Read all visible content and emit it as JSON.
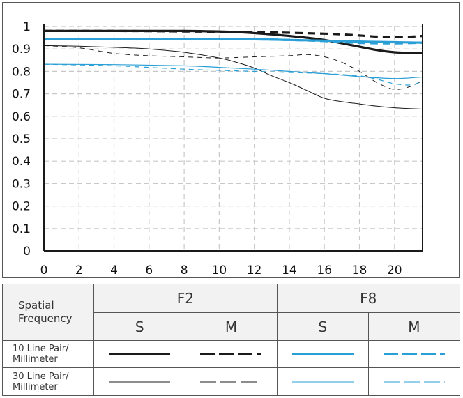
{
  "chart_data": {
    "type": "line",
    "title": "",
    "xlabel": "",
    "ylabel": "",
    "xlim": [
      0,
      21.6
    ],
    "ylim": [
      0,
      1
    ],
    "xticks": [
      0,
      2,
      4,
      6,
      8,
      10,
      12,
      14,
      16,
      18,
      20
    ],
    "yticks": [
      0,
      0.1,
      0.2,
      0.3,
      0.4,
      0.5,
      0.6,
      0.7,
      0.8,
      0.9,
      1
    ],
    "ytick_labels": [
      "0",
      "0.1",
      "0.2",
      "0.3",
      "0.4",
      "0.5",
      "0.6",
      "0.7",
      "0.8",
      "0.9",
      "1"
    ],
    "grid": true,
    "series": [
      {
        "name": "F2 S 10",
        "color": "#1a1a1a",
        "width": 3.2,
        "dash": "",
        "x": [
          0,
          4,
          8,
          11,
          13,
          15,
          16,
          17,
          18,
          19,
          20,
          21,
          21.6
        ],
        "y": [
          0.98,
          0.98,
          0.98,
          0.975,
          0.965,
          0.95,
          0.94,
          0.925,
          0.91,
          0.895,
          0.885,
          0.882,
          0.882
        ]
      },
      {
        "name": "F2 M 10",
        "color": "#1a1a1a",
        "width": 3.2,
        "dash": "11,7",
        "x": [
          0,
          4,
          8,
          12,
          14,
          16,
          17,
          18,
          19,
          20,
          21,
          21.6
        ],
        "y": [
          0.98,
          0.98,
          0.978,
          0.975,
          0.972,
          0.968,
          0.965,
          0.96,
          0.955,
          0.953,
          0.955,
          0.958
        ]
      },
      {
        "name": "F8 S 10",
        "color": "#2a9fd6",
        "width": 3.2,
        "dash": "",
        "x": [
          0,
          4,
          8,
          12,
          14,
          16,
          18,
          20,
          21.6
        ],
        "y": [
          0.945,
          0.945,
          0.945,
          0.943,
          0.94,
          0.937,
          0.933,
          0.93,
          0.928
        ]
      },
      {
        "name": "F8 M 10",
        "color": "#2a9fd6",
        "width": 3.2,
        "dash": "11,7",
        "x": [
          0,
          4,
          8,
          12,
          14,
          16,
          18,
          20,
          21.6
        ],
        "y": [
          0.945,
          0.945,
          0.945,
          0.943,
          0.94,
          0.935,
          0.927,
          0.925,
          0.928
        ]
      },
      {
        "name": "F2 S 30",
        "color": "#1a1a1a",
        "width": 1,
        "dash": "",
        "x": [
          0,
          2,
          4,
          6,
          8,
          10,
          11,
          12,
          13,
          14,
          15,
          16,
          17,
          18,
          19,
          20,
          21,
          21.6
        ],
        "y": [
          0.915,
          0.912,
          0.907,
          0.9,
          0.885,
          0.86,
          0.84,
          0.815,
          0.78,
          0.75,
          0.715,
          0.68,
          0.665,
          0.655,
          0.645,
          0.638,
          0.634,
          0.632
        ]
      },
      {
        "name": "F2 M 30",
        "color": "#1a1a1a",
        "width": 1,
        "dash": "7,6",
        "x": [
          0,
          2,
          4,
          6,
          8,
          10,
          12,
          14,
          15,
          16,
          17,
          18,
          19,
          20,
          21,
          21.6
        ],
        "y": [
          0.915,
          0.905,
          0.88,
          0.87,
          0.865,
          0.86,
          0.865,
          0.87,
          0.875,
          0.865,
          0.84,
          0.8,
          0.75,
          0.72,
          0.735,
          0.76
        ]
      },
      {
        "name": "F8 S 30",
        "color": "#2a9fd6",
        "width": 1.2,
        "dash": "",
        "x": [
          0,
          4,
          8,
          10,
          12,
          14,
          16,
          18,
          20,
          21.6
        ],
        "y": [
          0.832,
          0.83,
          0.825,
          0.818,
          0.81,
          0.8,
          0.79,
          0.777,
          0.768,
          0.775
        ]
      },
      {
        "name": "F8 M 30",
        "color": "#2a9fd6",
        "width": 1.2,
        "dash": "7,6",
        "x": [
          0,
          4,
          8,
          12,
          14,
          16,
          18,
          19,
          20,
          21,
          21.6
        ],
        "y": [
          0.832,
          0.825,
          0.81,
          0.8,
          0.795,
          0.79,
          0.78,
          0.765,
          0.745,
          0.74,
          0.76
        ]
      }
    ]
  },
  "legend": {
    "header_label": "Spatial Frequency",
    "apertures": [
      {
        "label": "F2",
        "cols": [
          {
            "label": "S"
          },
          {
            "label": "M"
          }
        ]
      },
      {
        "label": "F8",
        "cols": [
          {
            "label": "S"
          },
          {
            "label": "M"
          }
        ]
      }
    ],
    "rows": [
      {
        "label": "10 Line Pair/ Millimeter",
        "samples": [
          {
            "color": "#1a1a1a",
            "width": 4,
            "dash": ""
          },
          {
            "color": "#1a1a1a",
            "width": 4,
            "dash": "21,6"
          },
          {
            "color": "#2a9fd6",
            "width": 4,
            "dash": ""
          },
          {
            "color": "#2a9fd6",
            "width": 4,
            "dash": "21,6"
          }
        ]
      },
      {
        "label": "30 Line Pair/ Millimeter",
        "samples": [
          {
            "color": "#1a1a1a",
            "width": 1,
            "dash": ""
          },
          {
            "color": "#1a1a1a",
            "width": 1,
            "dash": "23,6"
          },
          {
            "color": "#2a9fd6",
            "width": 1,
            "dash": ""
          },
          {
            "color": "#2a9fd6",
            "width": 1,
            "dash": "23,6"
          }
        ]
      }
    ]
  }
}
